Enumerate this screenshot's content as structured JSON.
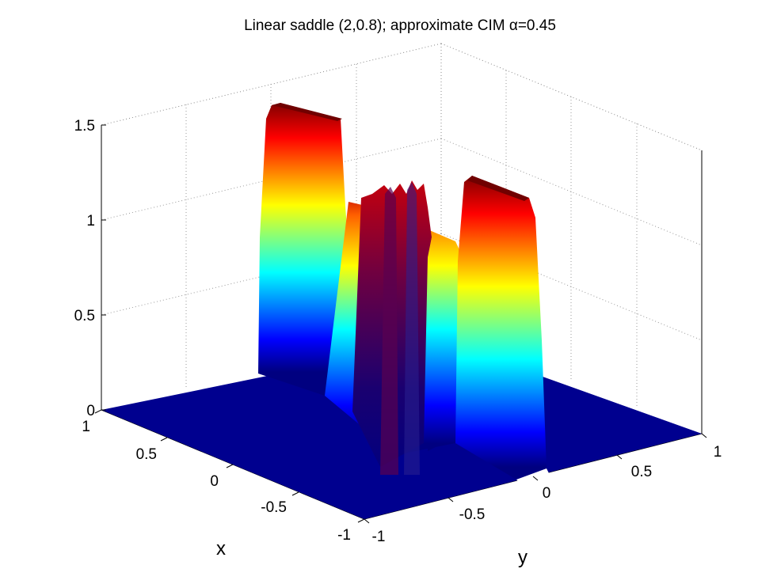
{
  "chart_data": {
    "type": "surface",
    "title": "Linear saddle (2,0.8); approximate CIM α=0.45",
    "xlabel": "x",
    "ylabel": "y",
    "zlabel": "",
    "xlim": [
      -1,
      1
    ],
    "ylim": [
      -1,
      1
    ],
    "zlim": [
      0,
      1.5
    ],
    "x_ticks": [
      "1",
      "0.5",
      "0",
      "-0.5",
      "-1"
    ],
    "y_ticks": [
      "-1",
      "-0.5",
      "0",
      "0.5",
      "1"
    ],
    "z_ticks": [
      "0",
      "0.5",
      "1",
      "1.5"
    ],
    "grid": true,
    "colormap": "jet",
    "colormap_colors": [
      "#000080",
      "#0000ff",
      "#00ffff",
      "#ffff00",
      "#ff0000",
      "#800000"
    ],
    "features": [
      {
        "name": "left-plateau-ridge",
        "peak": 1.55
      },
      {
        "name": "center-oscillating-ridge",
        "peak": 1.25
      },
      {
        "name": "right-plateau-ridge",
        "peak": 1.4
      },
      {
        "name": "base-floor",
        "value": 0
      }
    ]
  }
}
